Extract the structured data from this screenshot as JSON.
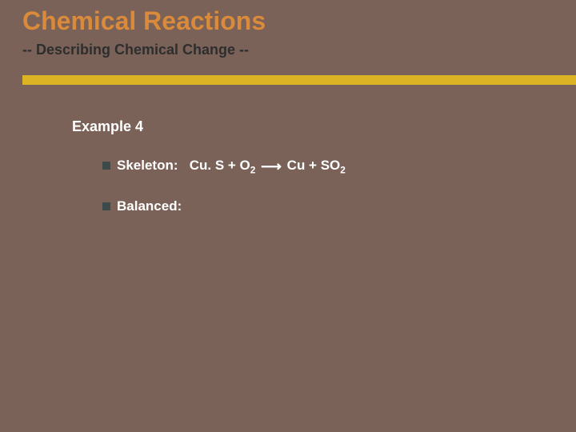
{
  "title": "Chemical Reactions",
  "subtitle": "-- Describing Chemical Change --",
  "accent_color": "#dcb324",
  "background_color": "#7a6258",
  "title_color": "#d98a3a",
  "subtitle_color": "#2e2e2e",
  "text_color": "#ffffff",
  "bullet_color": "#3d4a4a",
  "example_heading": "Example 4",
  "bullets": [
    {
      "label": "Skeleton:",
      "equation": {
        "left": "Cu. S + O",
        "left_sub": "2",
        "arrow": "⟶",
        "right_a": "Cu + SO",
        "right_sub": "2"
      }
    },
    {
      "label": "Balanced:",
      "equation": null
    }
  ],
  "fonts": {
    "title_size": 32,
    "subtitle_size": 18,
    "heading_size": 18,
    "body_size": 17
  }
}
